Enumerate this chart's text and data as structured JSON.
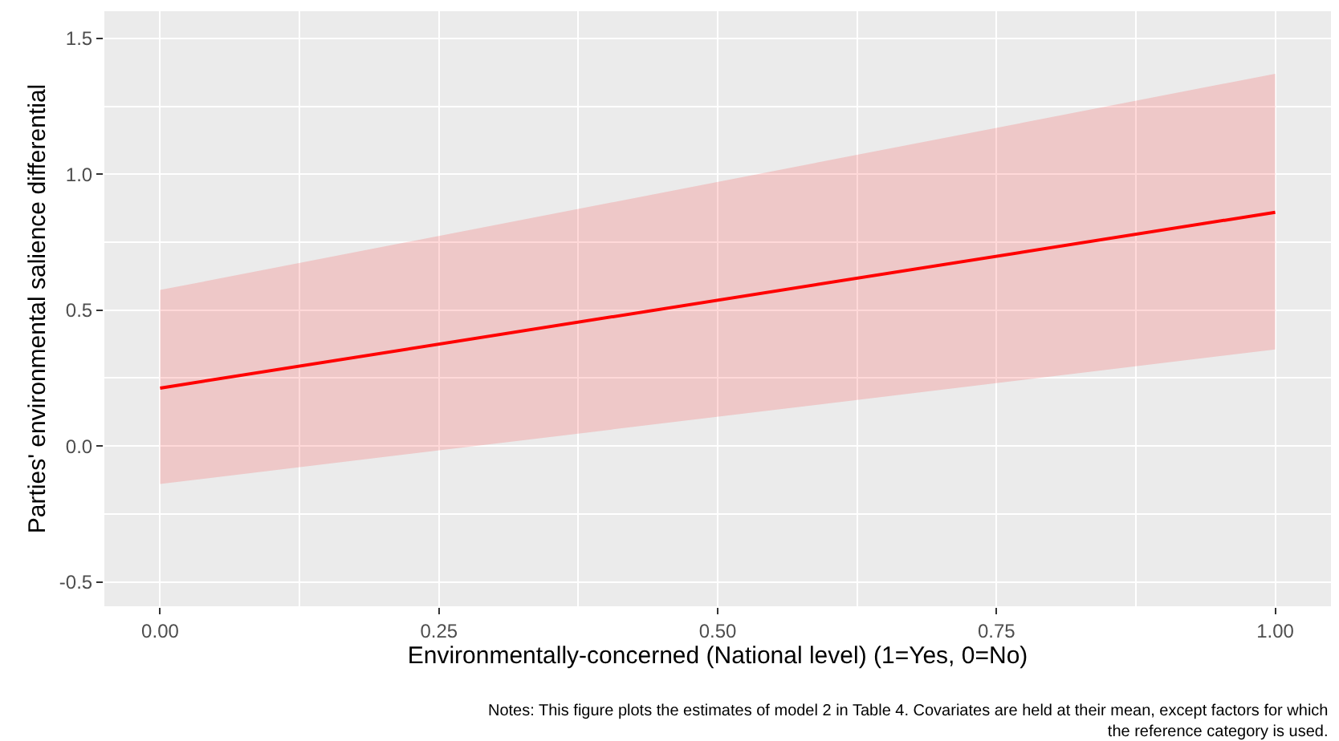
{
  "chart_data": {
    "type": "line",
    "xlabel": "Environmentally-concerned (National level) (1=Yes, 0=No)",
    "ylabel": "Parties' environmental salience differential",
    "x": [
      0,
      1
    ],
    "series": [
      {
        "color": "#ff0000",
        "values": [
          0.213,
          0.86
        ],
        "lower": [
          -0.14,
          0.355
        ],
        "upper": [
          0.574,
          1.37
        ]
      }
    ],
    "xlim": [
      -0.05,
      1.05
    ],
    "xticks": [
      {
        "value": 0,
        "label": "0.00"
      },
      {
        "value": 0.25,
        "label": "0.25"
      },
      {
        "value": 0.5,
        "label": "0.50"
      },
      {
        "value": 0.75,
        "label": "0.75"
      },
      {
        "value": 1,
        "label": "1.00"
      }
    ],
    "ylim": [
      -0.59,
      1.6
    ],
    "yticks": [
      {
        "value": -0.5,
        "label": "-0.5"
      },
      {
        "value": 0,
        "label": "0.0"
      },
      {
        "value": 0.5,
        "label": "0.5"
      },
      {
        "value": 1,
        "label": "1.0"
      },
      {
        "value": 1.5,
        "label": "1.5"
      }
    ],
    "grid": true,
    "line_style": "solid",
    "marker": "none",
    "annotations": [
      "Notes: This figure plots the estimates of model 2 in Table 4. Covariates are held at their mean, except factors for which\nthe reference category is used."
    ]
  }
}
